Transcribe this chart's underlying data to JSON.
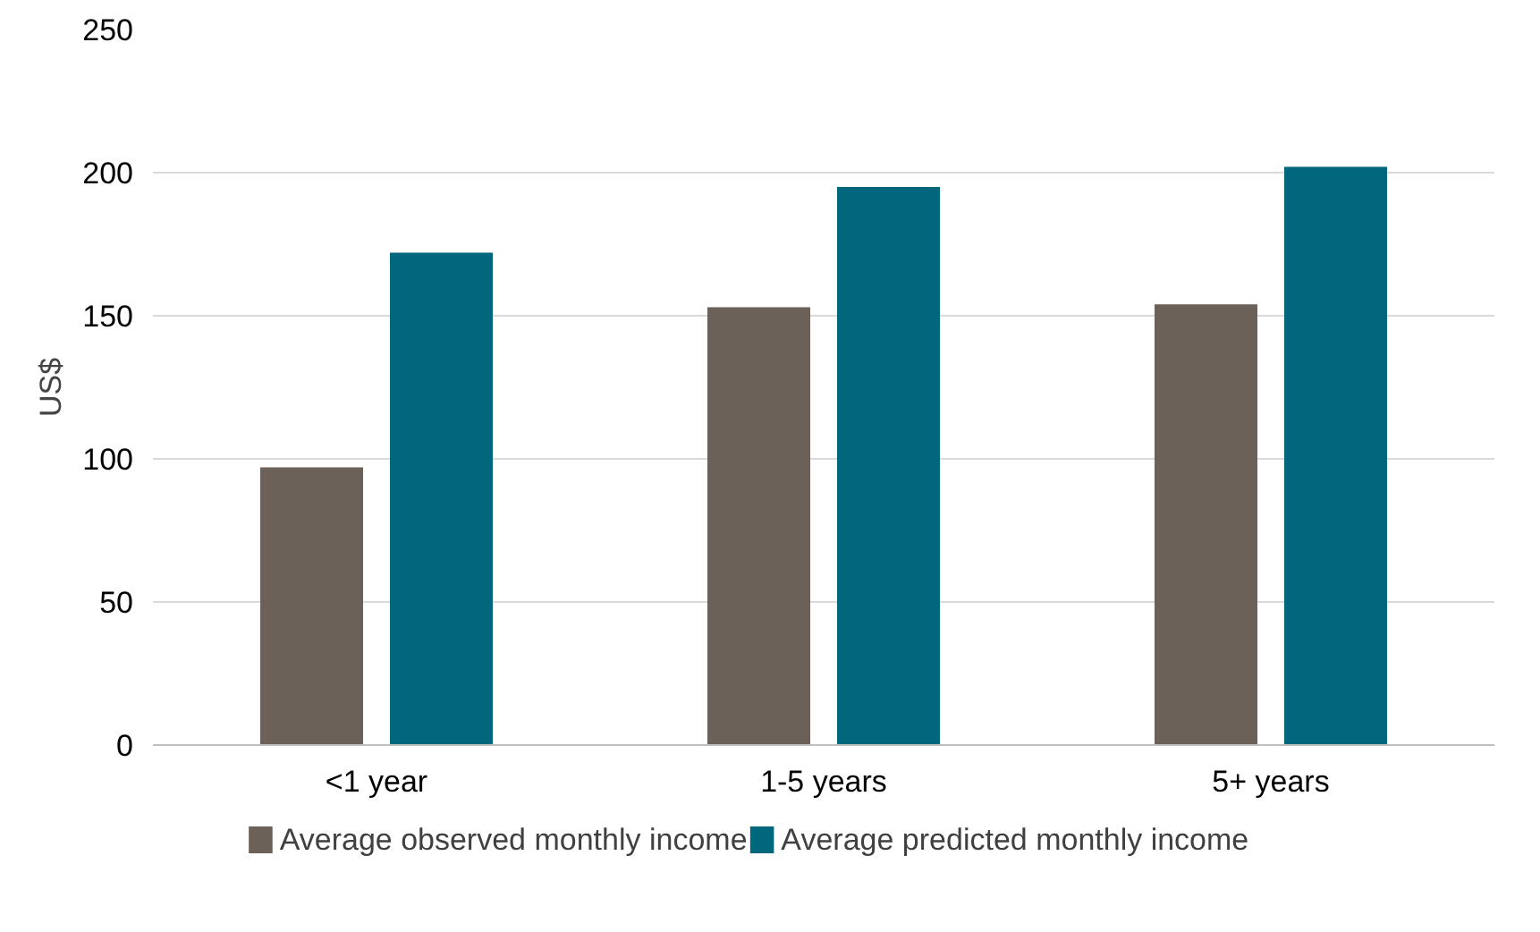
{
  "chart_data": {
    "type": "bar",
    "ylabel": "US$",
    "categories": [
      "<1 year",
      "1-5 years",
      "5+ years"
    ],
    "series": [
      {
        "name": "Average observed monthly income",
        "color": "#6b6158",
        "values": [
          97,
          153,
          154
        ]
      },
      {
        "name": "Average predicted monthly income",
        "color": "#00677d",
        "values": [
          172,
          195,
          202
        ]
      }
    ],
    "ylim": [
      0,
      250
    ],
    "yticks": [
      0,
      50,
      100,
      150,
      200,
      250
    ],
    "grid": "y",
    "legend": "bottom"
  }
}
